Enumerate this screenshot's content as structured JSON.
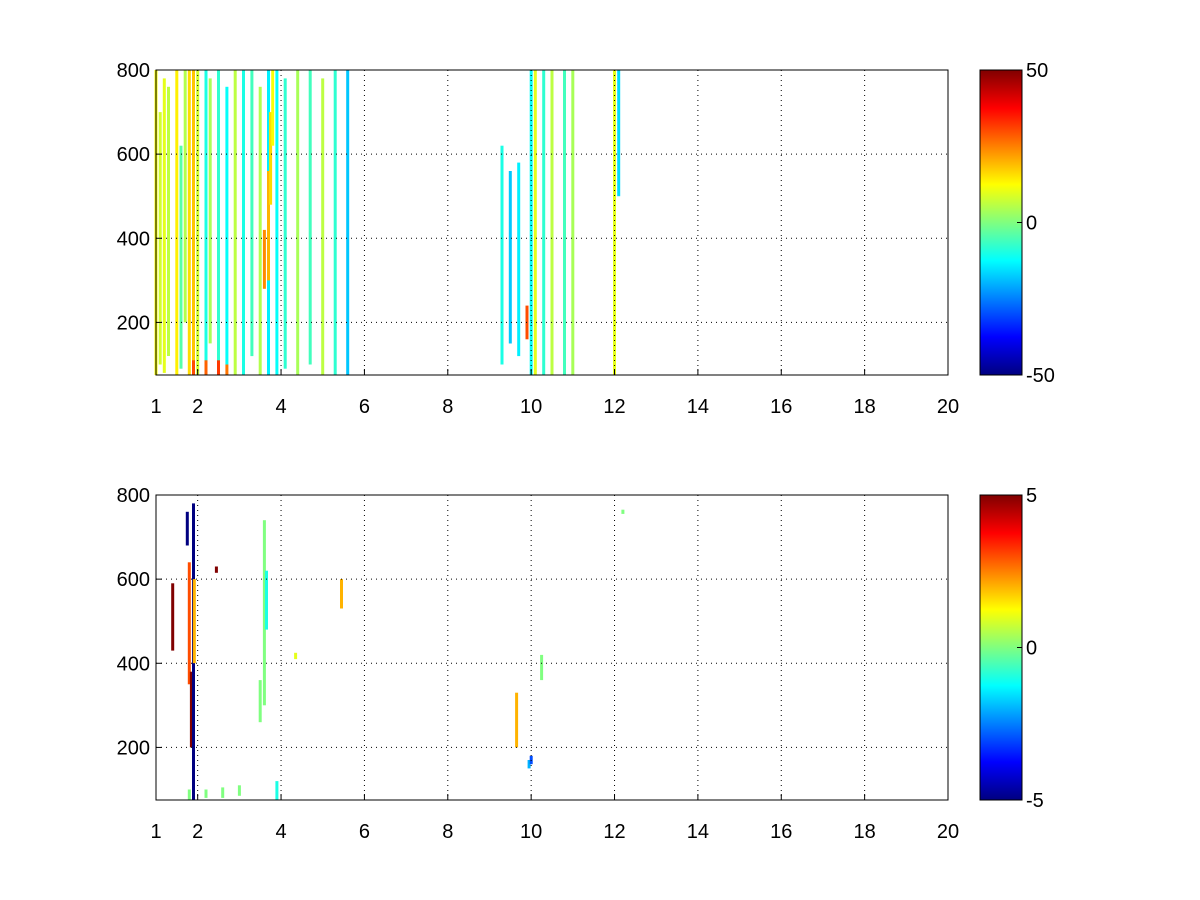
{
  "chart_data": [
    {
      "type": "heatmap",
      "title": "",
      "xlabel": "",
      "ylabel": "",
      "xlim": [
        1,
        20
      ],
      "ylim": [
        75,
        800
      ],
      "x_ticks": [
        "1",
        "2",
        "4",
        "6",
        "8",
        "10",
        "12",
        "14",
        "16",
        "18",
        "20"
      ],
      "y_ticks": [
        "200",
        "400",
        "600",
        "800"
      ],
      "grid": true,
      "colormap": "jet",
      "colorbar": {
        "min": -50,
        "max": 50,
        "ticks": [
          "50",
          "0",
          "-50"
        ]
      },
      "patches": [
        {
          "x": 1.0,
          "y0": 75,
          "y1": 800,
          "value": 12
        },
        {
          "x": 1.1,
          "y0": 100,
          "y1": 700,
          "value": 8
        },
        {
          "x": 1.2,
          "y0": 80,
          "y1": 780,
          "value": 10
        },
        {
          "x": 1.3,
          "y0": 120,
          "y1": 760,
          "value": 6
        },
        {
          "x": 1.5,
          "y0": 75,
          "y1": 800,
          "value": 14
        },
        {
          "x": 1.6,
          "y0": 90,
          "y1": 620,
          "value": -4
        },
        {
          "x": 1.7,
          "y0": 200,
          "y1": 800,
          "value": 5
        },
        {
          "x": 1.8,
          "y0": 75,
          "y1": 800,
          "value": 16
        },
        {
          "x": 1.9,
          "y0": 75,
          "y1": 800,
          "value": 18
        },
        {
          "x": 2.0,
          "y0": 75,
          "y1": 800,
          "value": 8
        },
        {
          "x": 2.2,
          "y0": 75,
          "y1": 800,
          "value": -10
        },
        {
          "x": 2.3,
          "y0": 150,
          "y1": 780,
          "value": 4
        },
        {
          "x": 2.5,
          "y0": 75,
          "y1": 800,
          "value": -8
        },
        {
          "x": 2.7,
          "y0": 100,
          "y1": 760,
          "value": -12
        },
        {
          "x": 2.9,
          "y0": 75,
          "y1": 800,
          "value": 6
        },
        {
          "x": 3.1,
          "y0": 75,
          "y1": 800,
          "value": -10
        },
        {
          "x": 3.3,
          "y0": 120,
          "y1": 800,
          "value": -6
        },
        {
          "x": 3.5,
          "y0": 75,
          "y1": 760,
          "value": 5
        },
        {
          "x": 3.7,
          "y0": 75,
          "y1": 800,
          "value": -14
        },
        {
          "x": 3.9,
          "y0": 75,
          "y1": 800,
          "value": -12
        },
        {
          "x": 4.1,
          "y0": 90,
          "y1": 780,
          "value": -8
        },
        {
          "x": 4.4,
          "y0": 75,
          "y1": 800,
          "value": 4
        },
        {
          "x": 4.7,
          "y0": 100,
          "y1": 800,
          "value": -6
        },
        {
          "x": 5.0,
          "y0": 75,
          "y1": 780,
          "value": 6
        },
        {
          "x": 5.3,
          "y0": 75,
          "y1": 800,
          "value": -8
        },
        {
          "x": 5.6,
          "y0": 75,
          "y1": 800,
          "value": -18
        },
        {
          "x": 1.9,
          "y0": 75,
          "y1": 110,
          "value": 30
        },
        {
          "x": 2.2,
          "y0": 75,
          "y1": 110,
          "value": 28
        },
        {
          "x": 2.5,
          "y0": 75,
          "y1": 110,
          "value": 32
        },
        {
          "x": 2.7,
          "y0": 75,
          "y1": 100,
          "value": 26
        },
        {
          "x": 3.6,
          "y0": 280,
          "y1": 420,
          "value": 24
        },
        {
          "x": 3.7,
          "y0": 300,
          "y1": 560,
          "value": 20
        },
        {
          "x": 3.75,
          "y0": 480,
          "y1": 700,
          "value": 16
        },
        {
          "x": 3.8,
          "y0": 620,
          "y1": 800,
          "value": 12
        },
        {
          "x": 9.3,
          "y0": 100,
          "y1": 620,
          "value": -10
        },
        {
          "x": 9.5,
          "y0": 150,
          "y1": 560,
          "value": -18
        },
        {
          "x": 9.7,
          "y0": 120,
          "y1": 580,
          "value": -14
        },
        {
          "x": 9.9,
          "y0": 160,
          "y1": 240,
          "value": 30
        },
        {
          "x": 10.0,
          "y0": 75,
          "y1": 800,
          "value": -12
        },
        {
          "x": 10.1,
          "y0": 75,
          "y1": 800,
          "value": 10
        },
        {
          "x": 10.3,
          "y0": 75,
          "y1": 800,
          "value": -8
        },
        {
          "x": 10.5,
          "y0": 75,
          "y1": 800,
          "value": 6
        },
        {
          "x": 10.8,
          "y0": 75,
          "y1": 800,
          "value": -6
        },
        {
          "x": 11.0,
          "y0": 75,
          "y1": 800,
          "value": 4
        },
        {
          "x": 12.0,
          "y0": 75,
          "y1": 800,
          "value": 10
        },
        {
          "x": 12.1,
          "y0": 500,
          "y1": 800,
          "value": -16
        }
      ]
    },
    {
      "type": "heatmap",
      "title": "",
      "xlabel": "",
      "ylabel": "",
      "xlim": [
        1,
        20
      ],
      "ylim": [
        75,
        800
      ],
      "x_ticks": [
        "1",
        "2",
        "4",
        "6",
        "8",
        "10",
        "12",
        "14",
        "16",
        "18",
        "20"
      ],
      "y_ticks": [
        "200",
        "400",
        "600",
        "800"
      ],
      "grid": true,
      "colormap": "jet",
      "colorbar": {
        "min": -5,
        "max": 5,
        "ticks": [
          "5",
          "0",
          "-5"
        ]
      },
      "patches": [
        {
          "x": 1.4,
          "y0": 430,
          "y1": 590,
          "value": 5
        },
        {
          "x": 1.75,
          "y0": 680,
          "y1": 760,
          "value": -5
        },
        {
          "x": 1.8,
          "y0": 350,
          "y1": 640,
          "value": 3
        },
        {
          "x": 1.85,
          "y0": 200,
          "y1": 380,
          "value": 5
        },
        {
          "x": 1.9,
          "y0": 75,
          "y1": 780,
          "value": -5
        },
        {
          "x": 1.92,
          "y0": 400,
          "y1": 600,
          "value": 2
        },
        {
          "x": 2.45,
          "y0": 615,
          "y1": 630,
          "value": 5
        },
        {
          "x": 1.8,
          "y0": 75,
          "y1": 100,
          "value": 0
        },
        {
          "x": 2.2,
          "y0": 80,
          "y1": 100,
          "value": 0
        },
        {
          "x": 2.6,
          "y0": 80,
          "y1": 105,
          "value": 0
        },
        {
          "x": 3.0,
          "y0": 85,
          "y1": 110,
          "value": 0
        },
        {
          "x": 3.5,
          "y0": 260,
          "y1": 360,
          "value": 0
        },
        {
          "x": 3.6,
          "y0": 300,
          "y1": 740,
          "value": 0
        },
        {
          "x": 3.65,
          "y0": 480,
          "y1": 620,
          "value": -1
        },
        {
          "x": 3.9,
          "y0": 75,
          "y1": 120,
          "value": -1
        },
        {
          "x": 4.35,
          "y0": 410,
          "y1": 425,
          "value": 1
        },
        {
          "x": 5.45,
          "y0": 530,
          "y1": 600,
          "value": 2
        },
        {
          "x": 9.65,
          "y0": 200,
          "y1": 330,
          "value": 2
        },
        {
          "x": 9.95,
          "y0": 150,
          "y1": 170,
          "value": -2
        },
        {
          "x": 10.0,
          "y0": 160,
          "y1": 180,
          "value": -3
        },
        {
          "x": 10.25,
          "y0": 360,
          "y1": 420,
          "value": 0
        },
        {
          "x": 12.2,
          "y0": 755,
          "y1": 765,
          "value": 0
        }
      ]
    }
  ]
}
